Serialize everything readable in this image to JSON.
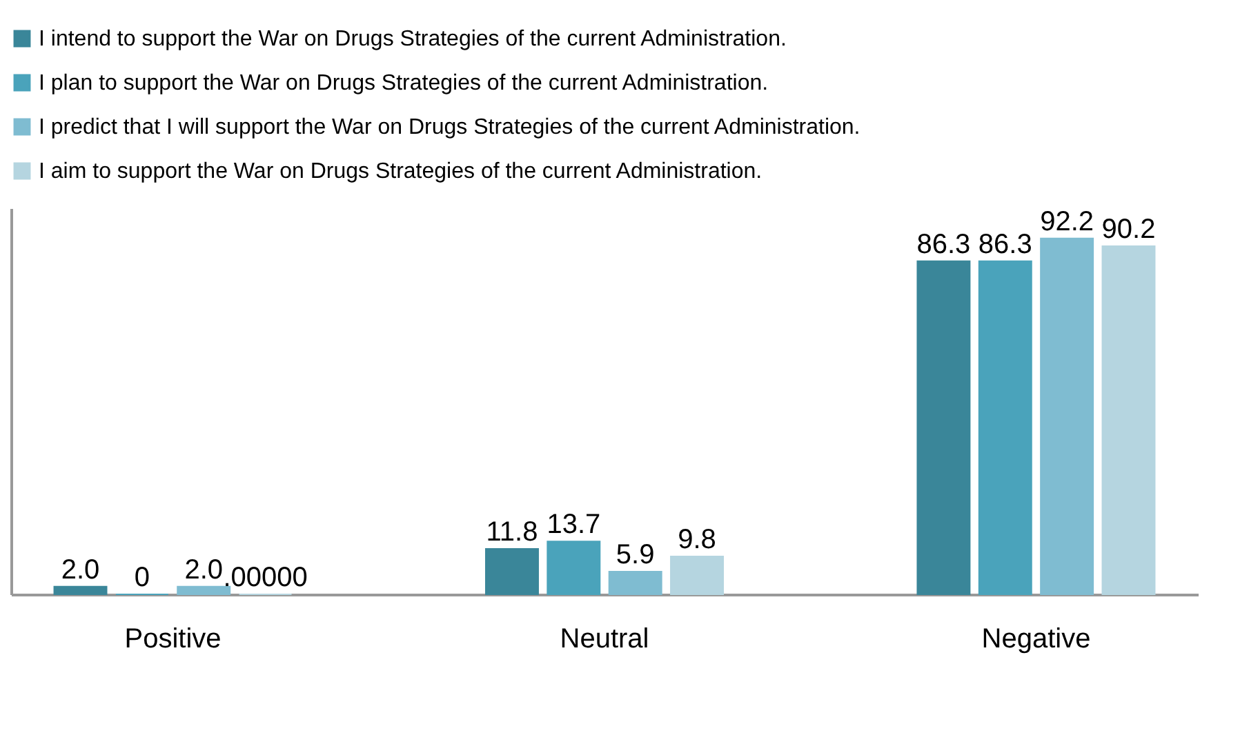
{
  "chart_data": {
    "type": "bar",
    "categories": [
      "Positive",
      "Neutral",
      "Negative"
    ],
    "series": [
      {
        "name": "I intend to support the War on Drugs Strategies of the current Administration.",
        "color": "#3a8699",
        "values": [
          2.0,
          11.8,
          86.3
        ],
        "value_labels": [
          "2.0",
          "11.8",
          "86.3"
        ]
      },
      {
        "name": "I plan to support the War on Drugs Strategies of the current Administration.",
        "color": "#4aa3bb",
        "values": [
          0,
          13.7,
          86.3
        ],
        "value_labels": [
          "0",
          "13.7",
          "86.3"
        ]
      },
      {
        "name": "I predict that I will support the War on Drugs Strategies of the current Administration.",
        "color": "#7fbcd1",
        "values": [
          2.0,
          5.9,
          92.2
        ],
        "value_labels": [
          "2.0",
          "5.9",
          "92.2"
        ]
      },
      {
        "name": "I aim to support the War on Drugs Strategies of the current Administration.",
        "color": "#b5d5e0",
        "values": [
          0,
          9.8,
          90.2
        ],
        "value_labels": [
          ".00000",
          "9.8",
          "90.2"
        ]
      }
    ],
    "legend": "top",
    "grid": false
  }
}
